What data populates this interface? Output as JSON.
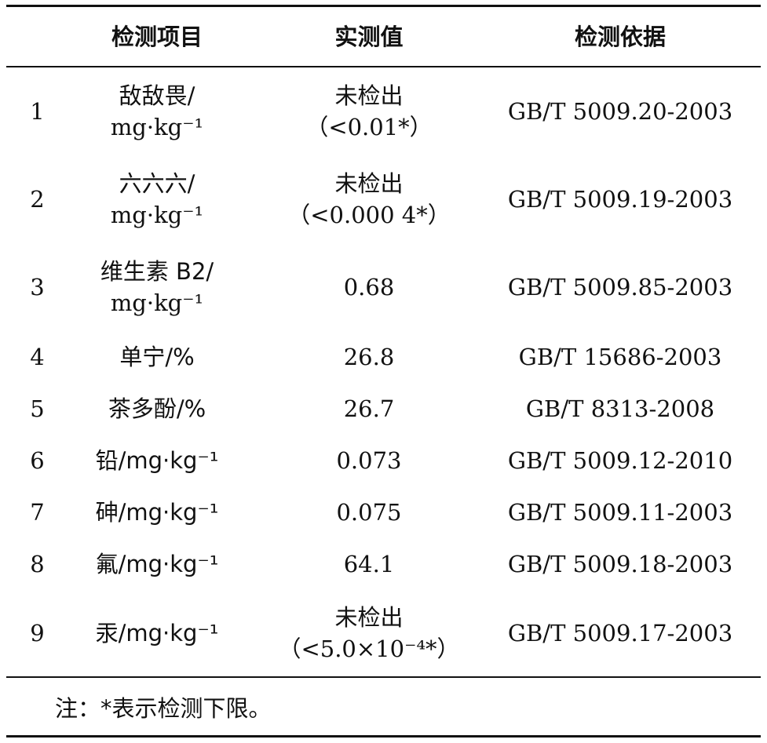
{
  "table": {
    "header": {
      "item": "检测项目",
      "value": "实测值",
      "basis": "检测依据"
    },
    "rows": [
      {
        "no": 1,
        "item": [
          "敌敌畏/",
          "mg·kg⁻¹"
        ],
        "value": [
          "未检出",
          "（<0.01*）"
        ],
        "basis": "GB/T 5009.20-2003"
      },
      {
        "no": 2,
        "item": [
          "六六六/",
          "mg·kg⁻¹"
        ],
        "value": [
          "未检出",
          "（<0.000 4*）"
        ],
        "basis": "GB/T 5009.19-2003"
      },
      {
        "no": 3,
        "item": [
          "维生素 B2/",
          "mg·kg⁻¹"
        ],
        "value": [
          "0.68"
        ],
        "basis": "GB/T 5009.85-2003"
      },
      {
        "no": 4,
        "item": [
          "单宁/%"
        ],
        "value": [
          "26.8"
        ],
        "basis": "GB/T 15686-2003"
      },
      {
        "no": 5,
        "item": [
          "茶多酚/%"
        ],
        "value": [
          "26.7"
        ],
        "basis": "GB/T 8313-2008"
      },
      {
        "no": 6,
        "item": [
          "铅/mg·kg⁻¹"
        ],
        "value": [
          "0.073"
        ],
        "basis": "GB/T 5009.12-2010"
      },
      {
        "no": 7,
        "item": [
          "砷/mg·kg⁻¹"
        ],
        "value": [
          "0.075"
        ],
        "basis": "GB/T 5009.11-2003"
      },
      {
        "no": 8,
        "item": [
          "氟/mg·kg⁻¹"
        ],
        "value": [
          "64.1"
        ],
        "basis": "GB/T 5009.18-2003"
      },
      {
        "no": 9,
        "item": [
          "汞/mg·kg⁻¹"
        ],
        "value": [
          "未检出",
          "（<5.0×10⁻⁴*）"
        ],
        "basis": "GB/T 5009.17-2003"
      }
    ],
    "note": "注：*表示检测下限。"
  }
}
